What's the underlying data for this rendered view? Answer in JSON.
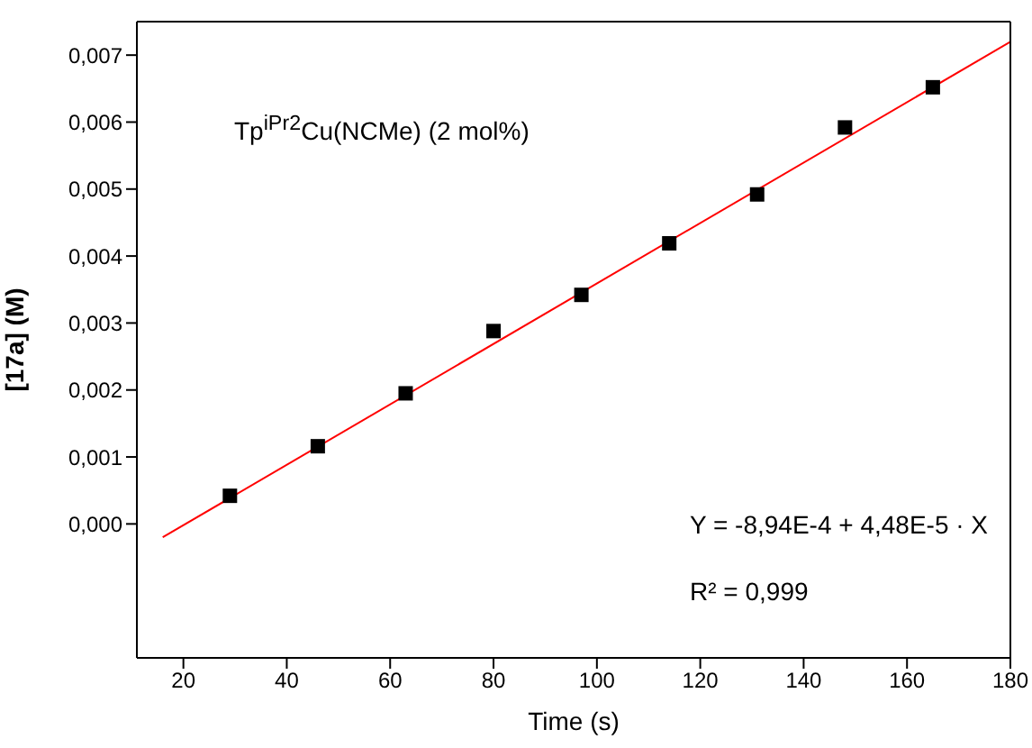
{
  "chart_data": {
    "type": "scatter",
    "xlabel": "Time (s)",
    "ylabel": "[17a] (M)",
    "xlim": [
      11,
      180
    ],
    "xticks": [
      20,
      40,
      60,
      80,
      100,
      120,
      140,
      160,
      180
    ],
    "ylim": [
      -0.002,
      0.0075
    ],
    "yticks": [
      {
        "value": 0,
        "label": "0,000"
      },
      {
        "value": 0.001,
        "label": "0,001"
      },
      {
        "value": 0.002,
        "label": "0,002"
      },
      {
        "value": 0.003,
        "label": "0,003"
      },
      {
        "value": 0.004,
        "label": "0,004"
      },
      {
        "value": 0.005,
        "label": "0,005"
      },
      {
        "value": 0.006,
        "label": "0,006"
      },
      {
        "value": 0.007,
        "label": "0,007"
      }
    ],
    "grid": false,
    "legend": false,
    "series": [
      {
        "marker": "square",
        "color": "#000000",
        "x": [
          29,
          46,
          63,
          80,
          97,
          114,
          131,
          148,
          165
        ],
        "values": [
          0.00042,
          0.00116,
          0.00195,
          0.00288,
          0.00342,
          0.00419,
          0.00492,
          0.00592,
          0.00652
        ]
      },
      {
        "type": "line",
        "marker": "none",
        "color": "#ff0000",
        "x": [
          16,
          180
        ],
        "values": [
          -0.0002,
          0.0072
        ]
      }
    ],
    "annotations": [
      "Tp$^{iPr2}$Cu(NCMe) (2 mol%)",
      "Y = -8,94E-4 + 4,48E-5 · X",
      "R² = 0,999"
    ]
  }
}
